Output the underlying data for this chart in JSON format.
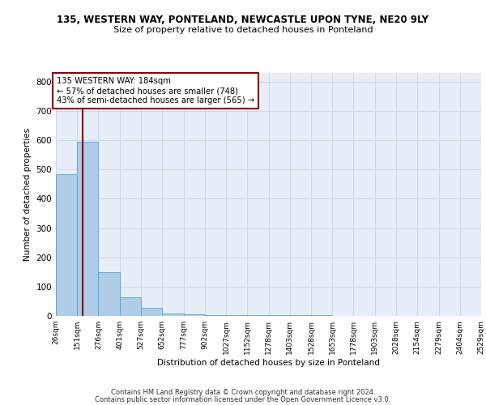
{
  "title": "135, WESTERN WAY, PONTELAND, NEWCASTLE UPON TYNE, NE20 9LY",
  "subtitle": "Size of property relative to detached houses in Ponteland",
  "xlabel": "Distribution of detached houses by size in Ponteland",
  "ylabel": "Number of detached properties",
  "bar_color": "#aecde8",
  "bar_edge_color": "#5ba3d0",
  "bar_heights": [
    485,
    595,
    150,
    65,
    28,
    8,
    5,
    3,
    2,
    2,
    2,
    2,
    2,
    1,
    1,
    1,
    1,
    1,
    1,
    1
  ],
  "bin_edges": [
    26,
    151,
    276,
    401,
    527,
    652,
    777,
    902,
    1027,
    1152,
    1278,
    1403,
    1528,
    1653,
    1778,
    1903,
    2028,
    2154,
    2279,
    2404,
    2529
  ],
  "tick_labels": [
    "26sqm",
    "151sqm",
    "276sqm",
    "401sqm",
    "527sqm",
    "652sqm",
    "777sqm",
    "902sqm",
    "1027sqm",
    "1152sqm",
    "1278sqm",
    "1403sqm",
    "1528sqm",
    "1653sqm",
    "1778sqm",
    "1903sqm",
    "2028sqm",
    "2154sqm",
    "2279sqm",
    "2404sqm",
    "2529sqm"
  ],
  "vline_x": 184,
  "vline_color": "#8b0000",
  "annotation_text": "135 WESTERN WAY: 184sqm\n← 57% of detached houses are smaller (748)\n43% of semi-detached houses are larger (565) →",
  "annotation_box_color": "#ffffff",
  "annotation_box_edge_color": "#8b0000",
  "ylim": [
    0,
    830
  ],
  "yticks": [
    0,
    100,
    200,
    300,
    400,
    500,
    600,
    700,
    800
  ],
  "grid_color": "#d0d8e8",
  "background_color": "#e8eef8",
  "footer_line1": "Contains HM Land Registry data © Crown copyright and database right 2024.",
  "footer_line2": "Contains public sector information licensed under the Open Government Licence v3.0."
}
